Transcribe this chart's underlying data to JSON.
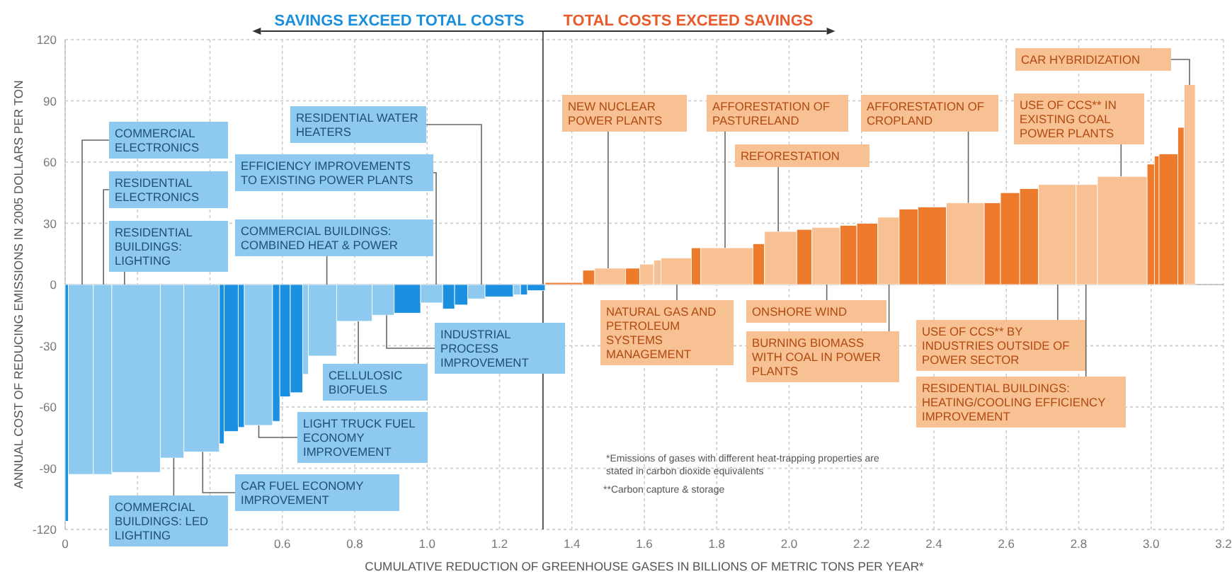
{
  "chart_data": {
    "type": "histogram",
    "xlabel": "CUMULATIVE REDUCTION OF GREENHOUSE GASES IN BILLIONS OF METRIC TONS PER YEAR*",
    "ylabel": "ANNUAL COST OF REDUCING EMISSIONS IN 2005 DOLLARS PER TON",
    "bins": [
      0,
      0.009,
      0.078,
      0.129,
      0.263,
      0.328,
      0.426,
      0.439,
      0.478,
      0.495,
      0.573,
      0.593,
      0.622,
      0.656,
      0.672,
      0.75,
      0.848,
      0.909,
      0.982,
      1.043,
      1.076,
      1.112,
      1.16,
      1.238,
      1.258,
      1.277,
      1.326,
      1.43,
      1.463,
      1.548,
      1.587,
      1.626,
      1.646,
      1.73,
      1.756,
      1.9,
      1.932,
      2.021,
      2.063,
      2.141,
      2.187,
      2.245,
      2.304,
      2.356,
      2.434,
      2.539,
      2.584,
      2.637,
      2.689,
      2.793,
      2.852,
      2.989,
      3.009,
      3.022,
      3.074,
      3.091,
      3.122
    ],
    "values": [
      -116,
      -93,
      -93,
      -92,
      -85,
      -82,
      -78,
      -72,
      -70,
      -69,
      -67,
      -55,
      -53,
      -44,
      -35,
      -18,
      -15,
      -14,
      -9,
      -12,
      -10,
      -7,
      -6,
      -5,
      -5,
      -3,
      1,
      7,
      8,
      8,
      10,
      12,
      13,
      18,
      18,
      20,
      26,
      27,
      28,
      29,
      30,
      33,
      37,
      38,
      40,
      40,
      45,
      47,
      49,
      49,
      53,
      59,
      63,
      64,
      77,
      98
    ],
    "colors": [
      "#1b8fe0",
      "#8ecaf0",
      "#8ecaf0",
      "#8ecaf0",
      "#8ecaf0",
      "#8ecaf0",
      "#1b8fe0",
      "#1b8fe0",
      "#1b8fe0",
      "#8ecaf0",
      "#1b8fe0",
      "#1b8fe0",
      "#1b8fe0",
      "#8ecaf0",
      "#8ecaf0",
      "#8ecaf0",
      "#8ecaf0",
      "#1b8fe0",
      "#8ecaf0",
      "#1b8fe0",
      "#1b8fe0",
      "#8ecaf0",
      "#1b8fe0",
      "#8ecaf0",
      "#1b8fe0",
      "#1b8fe0",
      "#ee7a2c",
      "#ee7a2c",
      "#f8c193",
      "#ee7a2c",
      "#f8c193",
      "#f8c193",
      "#f8c193",
      "#ee7a2c",
      "#f8c193",
      "#ee7a2c",
      "#f8c193",
      "#ee7a2c",
      "#f8c193",
      "#ee7a2c",
      "#ee7a2c",
      "#f8c193",
      "#ee7a2c",
      "#ee7a2c",
      "#f8c193",
      "#ee7a2c",
      "#ee7a2c",
      "#ee7a2c",
      "#f8c193",
      "#f8c193",
      "#f8c193",
      "#ee7a2c",
      "#ee7a2c",
      "#ee7a2c",
      "#ee7a2c",
      "#f8c193"
    ],
    "xlim": [
      0,
      3.2
    ],
    "xticks": [
      0,
      {
        "value": 0.2,
        "label": null
      },
      {
        "value": 0.4,
        "label": null
      },
      0.6,
      0.8,
      {
        "value": 1,
        "label": "1.0"
      },
      1.2,
      1.4,
      1.6,
      1.8,
      {
        "value": 2,
        "label": "2.0"
      },
      2.2,
      2.4,
      2.6,
      2.8,
      {
        "value": 3,
        "label": "3.0"
      },
      3.2
    ],
    "ylim": [
      -120,
      120
    ],
    "yticks": [
      -120,
      -90,
      -60,
      -30,
      0,
      30,
      60,
      90,
      120
    ],
    "grid": true,
    "ref_lines": [
      {
        "axis": "x",
        "value": 1.32,
        "color": "#555555"
      }
    ],
    "annotations": [
      {
        "text": "COMMERCIAL ELECTRONICS",
        "x": 0.047,
        "y": 0
      },
      {
        "text": "RESIDENTIAL ELECTRONICS",
        "x": 0.106,
        "y": 0
      },
      {
        "text": "RESIDENTIAL BUILDINGS: LIGHTING",
        "x": 0.164,
        "y": 0
      },
      {
        "text": "RESIDENTIAL WATER HEATERS",
        "x": 1.15,
        "y": 0
      },
      "EFFICIENCY IMPROVEMENTS TO EXISTING POWER PLANTS",
      {
        "text": "COMMERCIAL BUILDINGS: COMBINED HEAT & POWER",
        "x": 0.723,
        "y": 0
      },
      {
        "text": "COMMERCIAL BUILDINGS: LED LIGHTING",
        "x": 0.3,
        "y": -85
      },
      {
        "text": "CAR FUEL ECONOMY IMPROVEMENT",
        "x": 0.38,
        "y": -82
      },
      {
        "text": "LIGHT TRUCK FUEL ECONOMY IMPROVEMENT",
        "x": 0.535,
        "y": -69
      },
      {
        "text": "CELLULOSIC BIOFUELS",
        "x": 0.81,
        "y": -18
      },
      {
        "text": "INDUSTRIAL PROCESS IMPROVEMENT",
        "x": 0.888,
        "y": -15
      },
      {
        "text": "NEW NUCLEAR POWER PLANTS",
        "x": 1.5,
        "y": 8
      },
      {
        "text": "AFFORESTATION OF PASTURELAND",
        "x": 1.823,
        "y": 18
      },
      {
        "text": "REFORESTATION",
        "x": 1.97,
        "y": 26
      },
      {
        "text": "AFFORESTATION OF CROPLAND",
        "x": 2.495,
        "y": 40
      },
      {
        "text": "USE OF CCS** IN EXISTING COAL POWER PLANTS",
        "x": 2.917,
        "y": 53
      },
      "CAR HYBRIDIZATION",
      {
        "text": "NATURAL GAS AND PETROLEUM SYSTEMS MANAGEMENT",
        "x": 1.69,
        "y": 0
      },
      {
        "text": "ONSHORE WIND",
        "x": 2.104,
        "y": 0
      },
      {
        "text": "BURNING BIOMASS WITH COAL IN POWER PLANTS",
        "x": 2.276,
        "y": 0
      },
      {
        "text": "USE OF CCS** BY INDUSTRIES OUTSIDE OF POWER SECTOR",
        "x": 2.742,
        "y": 0
      },
      {
        "text": "RESIDENTIAL BUILDINGS: HEATING/COOLING EFFICIENCY IMPROVEMENT",
        "x": 2.82,
        "y": 0
      },
      "SAVINGS EXCEED TOTAL COSTS",
      "TOTAL COSTS EXCEED SAVINGS",
      "*Emissions of gases with different heat-trapping properties are stated in carbon dioxide equivalents",
      "**Carbon capture & storage"
    ]
  }
}
